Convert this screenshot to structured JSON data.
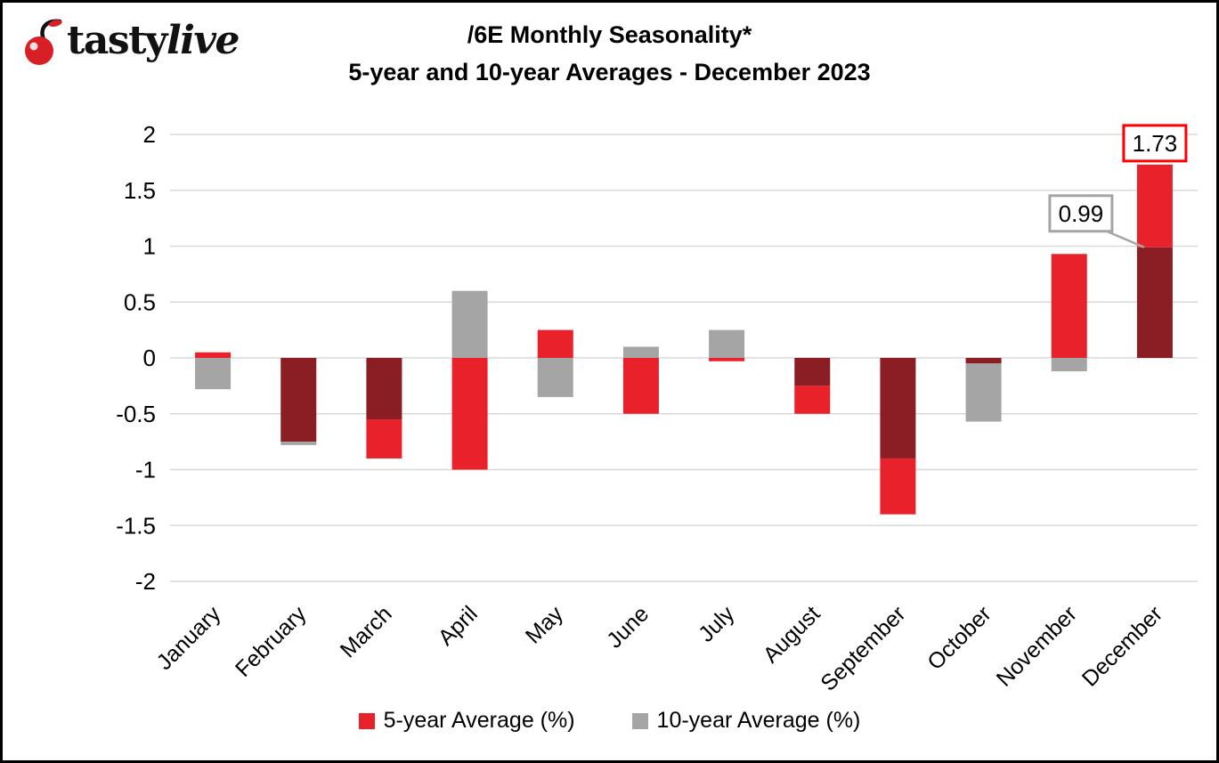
{
  "logo": {
    "text_regular": "tasty",
    "text_italic": "live",
    "cherry_color": "#D81F26"
  },
  "title": {
    "line1": "/6E Monthly Seasonality*",
    "line2": "5-year and 10-year Averages - December 2023"
  },
  "chart_data": {
    "type": "bar",
    "title": "/6E Monthly Seasonality*",
    "subtitle": "5-year and 10-year Averages - December 2023",
    "categories": [
      "January",
      "February",
      "March",
      "April",
      "May",
      "June",
      "July",
      "August",
      "September",
      "October",
      "November",
      "December"
    ],
    "series": [
      {
        "name": "5-year Average (%)",
        "color": "#E8212B",
        "values": [
          0.05,
          -0.75,
          -0.9,
          -1.0,
          0.25,
          -0.5,
          -0.03,
          -0.5,
          -1.4,
          -0.05,
          0.93,
          1.73
        ]
      },
      {
        "name": "10-year Average (%)",
        "color": "#A5A5A5",
        "values": [
          -0.28,
          -0.78,
          -0.55,
          0.6,
          -0.35,
          0.1,
          0.25,
          -0.25,
          -0.9,
          -0.57,
          -0.12,
          0.99
        ]
      }
    ],
    "overlap_color": "#8B1E24",
    "ylim": [
      -2,
      2
    ],
    "ytick_step": 0.5,
    "yticks": [
      "2",
      "1.5",
      "1",
      "0.5",
      "0",
      "-0.5",
      "-1",
      "-1.5",
      "-2"
    ],
    "grid": true,
    "gridline_color": "#D9D9D9",
    "legend_position": "bottom",
    "annotations": [
      {
        "text": "0.99",
        "month_index": 11,
        "value": 0.99,
        "series": "10-year Average (%)",
        "border_color": "#A5A5A5",
        "placement": "left-of-bar",
        "leader": true
      },
      {
        "text": "1.73",
        "month_index": 11,
        "value": 1.73,
        "series": "5-year Average (%)",
        "border_color": "#FF0000",
        "placement": "above-bar",
        "leader": false
      }
    ]
  }
}
